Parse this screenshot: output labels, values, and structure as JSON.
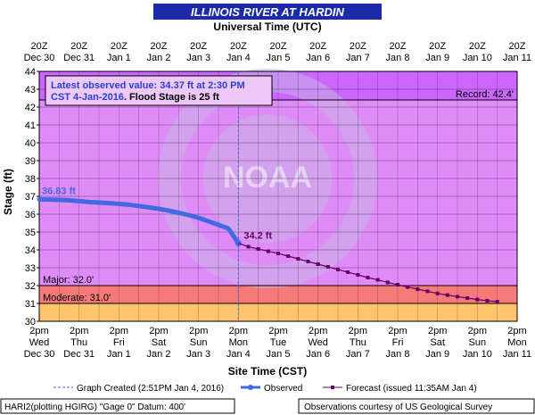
{
  "chart_data": {
    "type": "line",
    "title": "ILLINOIS RIVER AT HARDIN",
    "top_axis_title": "Universal Time (UTC)",
    "bottom_axis_title": "Site Time (CST)",
    "ylabel": "Stage (ft)",
    "ylim": [
      30,
      44
    ],
    "yticks": [
      30,
      31,
      32,
      33,
      34,
      35,
      36,
      37,
      38,
      39,
      40,
      41,
      42,
      43,
      44
    ],
    "xlim": [
      "Dec 30 2pm",
      "Jan 11 2pm"
    ],
    "grid": true,
    "top_ticks": [
      {
        "l1": "20Z",
        "l2": "Dec 30"
      },
      {
        "l1": "20Z",
        "l2": "Dec 31"
      },
      {
        "l1": "20Z",
        "l2": "Jan 1"
      },
      {
        "l1": "20Z",
        "l2": "Jan 2"
      },
      {
        "l1": "20Z",
        "l2": "Jan 3"
      },
      {
        "l1": "20Z",
        "l2": "Jan 4"
      },
      {
        "l1": "20Z",
        "l2": "Jan 5"
      },
      {
        "l1": "20Z",
        "l2": "Jan 6"
      },
      {
        "l1": "20Z",
        "l2": "Jan 7"
      },
      {
        "l1": "20Z",
        "l2": "Jan 8"
      },
      {
        "l1": "20Z",
        "l2": "Jan 9"
      },
      {
        "l1": "20Z",
        "l2": "Jan 10"
      },
      {
        "l1": "20Z",
        "l2": "Jan 11"
      }
    ],
    "bottom_ticks": [
      {
        "l1": "2pm",
        "l2": "Wed",
        "l3": "Dec 30"
      },
      {
        "l1": "2pm",
        "l2": "Thu",
        "l3": "Dec 31"
      },
      {
        "l1": "2pm",
        "l2": "Fri",
        "l3": "Jan 1"
      },
      {
        "l1": "2pm",
        "l2": "Sat",
        "l3": "Jan 2"
      },
      {
        "l1": "2pm",
        "l2": "Sun",
        "l3": "Jan 3"
      },
      {
        "l1": "2pm",
        "l2": "Mon",
        "l3": "Jan 4"
      },
      {
        "l1": "2pm",
        "l2": "Tue",
        "l3": "Jan 5"
      },
      {
        "l1": "2pm",
        "l2": "Wed",
        "l3": "Jan 6"
      },
      {
        "l1": "2pm",
        "l2": "Thu",
        "l3": "Jan 7"
      },
      {
        "l1": "2pm",
        "l2": "Fri",
        "l3": "Jan 8"
      },
      {
        "l1": "2pm",
        "l2": "Sat",
        "l3": "Jan 9"
      },
      {
        "l1": "2pm",
        "l2": "Sun",
        "l3": "Jan 10"
      },
      {
        "l1": "2pm",
        "l2": "Mon",
        "l3": "Jan 11"
      }
    ],
    "bands": [
      {
        "name": "Record",
        "from": 42.4,
        "to": 44,
        "color": "#cc66ff"
      },
      {
        "name": "above",
        "from": 32,
        "to": 42.4,
        "color": "#e08cf8"
      },
      {
        "name": "Major",
        "from": 31,
        "to": 32,
        "color": "#f77a7a"
      },
      {
        "name": "Moderate",
        "from": 30,
        "to": 31,
        "color": "#ffc56b"
      }
    ],
    "threshold_labels": [
      {
        "text": "Record: 42.4'",
        "value": 42.4
      },
      {
        "text": "Major: 32.0'",
        "value": 32.0
      },
      {
        "text": "Moderate: 31.0'",
        "value": 31.0
      }
    ],
    "annotation_line1a": "Latest observed value: ",
    "annotation_line1b": "34.37 ft at 2:30 PM",
    "annotation_line2a": "CST 4-Jan-2016",
    "annotation_line2b": ". Flood Stage is 25 ft",
    "series": [
      {
        "name": "Observed",
        "color": "#4169e1",
        "start_label": "36.83 ft",
        "points": [
          [
            0,
            36.83
          ],
          [
            0.25,
            36.82
          ],
          [
            0.5,
            36.8
          ],
          [
            0.75,
            36.78
          ],
          [
            1.0,
            36.73
          ],
          [
            1.25,
            36.68
          ],
          [
            1.5,
            36.65
          ],
          [
            1.75,
            36.62
          ],
          [
            2.0,
            36.58
          ],
          [
            2.25,
            36.53
          ],
          [
            2.5,
            36.46
          ],
          [
            2.75,
            36.38
          ],
          [
            3.0,
            36.3
          ],
          [
            3.25,
            36.2
          ],
          [
            3.5,
            36.08
          ],
          [
            3.75,
            35.95
          ],
          [
            4.0,
            35.8
          ],
          [
            4.25,
            35.6
          ],
          [
            4.5,
            35.4
          ],
          [
            4.75,
            35.2
          ],
          [
            5.0,
            34.37
          ]
        ]
      },
      {
        "name": "Forecast",
        "color": "#660066",
        "start_label": "34.2 ft",
        "points": [
          [
            5.0,
            34.37
          ],
          [
            5.25,
            34.18
          ],
          [
            5.5,
            34.05
          ],
          [
            5.75,
            33.92
          ],
          [
            6.0,
            33.8
          ],
          [
            6.25,
            33.65
          ],
          [
            6.5,
            33.5
          ],
          [
            6.75,
            33.35
          ],
          [
            7.0,
            33.2
          ],
          [
            7.25,
            33.05
          ],
          [
            7.5,
            32.9
          ],
          [
            7.75,
            32.75
          ],
          [
            8.0,
            32.6
          ],
          [
            8.25,
            32.45
          ],
          [
            8.5,
            32.32
          ],
          [
            8.75,
            32.18
          ],
          [
            9.0,
            32.05
          ],
          [
            9.25,
            31.92
          ],
          [
            9.5,
            31.8
          ],
          [
            9.75,
            31.68
          ],
          [
            10.0,
            31.56
          ],
          [
            10.25,
            31.47
          ],
          [
            10.5,
            31.38
          ],
          [
            10.75,
            31.3
          ],
          [
            11.0,
            31.22
          ],
          [
            11.25,
            31.15
          ],
          [
            11.5,
            31.1
          ]
        ]
      }
    ]
  },
  "legend": {
    "created_label": "Graph Created (2:51PM Jan 4, 2016)",
    "observed_label": "Observed",
    "forecast_label": "Forecast (issued 11:35AM Jan 4)"
  },
  "footer": {
    "left": "HARI2(plotting HGIRG) \"Gage 0\" Datum: 400'",
    "right": "Observations courtesy of US Geological Survey"
  },
  "watermark": "NOAA"
}
